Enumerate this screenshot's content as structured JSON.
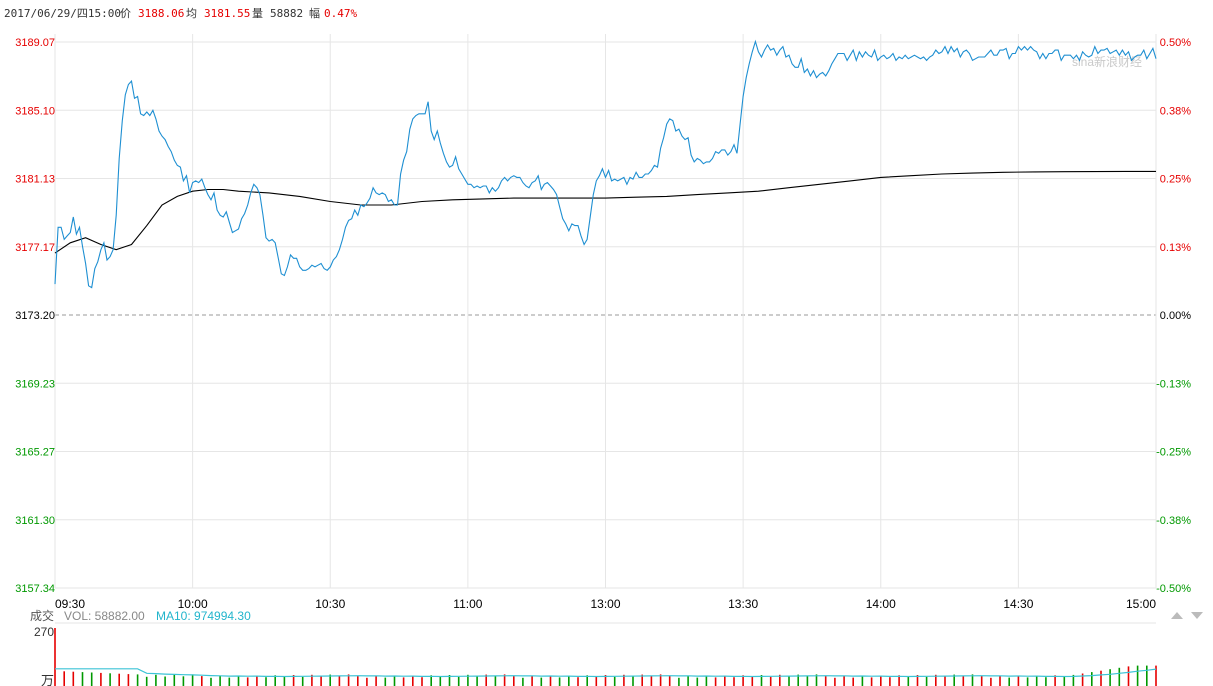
{
  "header": {
    "datetime": "2017/06/29/四15:00",
    "price_label": "价",
    "price": "3188.06",
    "avg_label": "均",
    "avg": "3181.55",
    "volume_label": "量",
    "volume": "58882",
    "change_label": "幅",
    "change": "0.47%"
  },
  "volume_panel": {
    "label": "成交",
    "vol_text": "VOL: 58882.00",
    "ma_text": "MA10: 974994.30",
    "max_label": "270",
    "unit_label": "万"
  },
  "watermark": "sina新浪财经",
  "colors": {
    "up": "#e60000",
    "down": "#009900",
    "price_line": "#1e8fd2",
    "avg_line": "#000000",
    "ma_line": "#3cc4d6",
    "grid": "#e6e6e6",
    "base": "#999999"
  },
  "chart_data": {
    "type": "line",
    "base_price": 3173.2,
    "ylim": [
      3157.34,
      3189.07
    ],
    "y_ticks": [
      "3189.07",
      "3185.10",
      "3181.13",
      "3177.17",
      "3173.20",
      "3169.23",
      "3165.27",
      "3161.30",
      "3157.34"
    ],
    "pct_ticks": [
      "0.50%",
      "0.38%",
      "0.25%",
      "0.13%",
      "0.00%",
      "-0.13%",
      "-0.25%",
      "-0.38%",
      "-0.50%"
    ],
    "x_ticks": [
      "09:30",
      "10:00",
      "10:30",
      "11:00",
      "13:00",
      "13:30",
      "14:00",
      "14:30",
      "15:00"
    ],
    "price": [
      [
        0,
        3175.0
      ],
      [
        1,
        3178.3
      ],
      [
        2,
        3178.3
      ],
      [
        3,
        3177.6
      ],
      [
        4,
        3177.8
      ],
      [
        5,
        3178.0
      ],
      [
        6,
        3178.9
      ],
      [
        7,
        3177.9
      ],
      [
        8,
        3178.3
      ],
      [
        9,
        3177.2
      ],
      [
        10,
        3176.2
      ],
      [
        11,
        3174.9
      ],
      [
        12,
        3174.8
      ],
      [
        13,
        3175.9
      ],
      [
        14,
        3176.3
      ],
      [
        15,
        3177.0
      ],
      [
        16,
        3177.4
      ],
      [
        17,
        3176.4
      ],
      [
        18,
        3176.6
      ],
      [
        19,
        3177.0
      ],
      [
        20,
        3179.0
      ],
      [
        21,
        3182.3
      ],
      [
        22,
        3184.5
      ],
      [
        23,
        3186.0
      ],
      [
        24,
        3186.6
      ],
      [
        25,
        3186.8
      ],
      [
        26,
        3185.8
      ],
      [
        27,
        3185.9
      ],
      [
        28,
        3184.9
      ],
      [
        29,
        3184.8
      ],
      [
        30,
        3185.0
      ],
      [
        31,
        3184.8
      ],
      [
        32,
        3185.1
      ],
      [
        33,
        3184.6
      ],
      [
        34,
        3183.9
      ],
      [
        35,
        3183.6
      ],
      [
        36,
        3183.4
      ],
      [
        37,
        3183.0
      ],
      [
        38,
        3182.7
      ],
      [
        39,
        3182.2
      ],
      [
        40,
        3181.9
      ],
      [
        41,
        3181.8
      ],
      [
        42,
        3181.0
      ],
      [
        43,
        3181.3
      ],
      [
        44,
        3180.3
      ],
      [
        45,
        3180.9
      ],
      [
        46,
        3181.0
      ],
      [
        47,
        3180.9
      ],
      [
        48,
        3181.1
      ],
      [
        49,
        3180.6
      ],
      [
        50,
        3180.2
      ],
      [
        51,
        3179.9
      ],
      [
        52,
        3180.3
      ],
      [
        53,
        3179.3
      ],
      [
        54,
        3179.0
      ],
      [
        55,
        3178.9
      ],
      [
        56,
        3179.2
      ],
      [
        57,
        3178.6
      ],
      [
        58,
        3178.0
      ],
      [
        59,
        3178.1
      ],
      [
        60,
        3178.2
      ],
      [
        61,
        3178.8
      ],
      [
        62,
        3179.1
      ],
      [
        63,
        3179.6
      ],
      [
        64,
        3180.3
      ],
      [
        65,
        3180.8
      ],
      [
        66,
        3180.6
      ],
      [
        67,
        3180.2
      ],
      [
        68,
        3179.0
      ],
      [
        69,
        3177.7
      ],
      [
        70,
        3177.5
      ],
      [
        71,
        3177.6
      ],
      [
        72,
        3177.4
      ],
      [
        73,
        3176.5
      ],
      [
        74,
        3175.6
      ],
      [
        75,
        3175.5
      ],
      [
        76,
        3176.0
      ],
      [
        77,
        3176.7
      ],
      [
        78,
        3176.5
      ],
      [
        79,
        3176.5
      ],
      [
        80,
        3176.0
      ],
      [
        81,
        3175.8
      ],
      [
        82,
        3175.8
      ],
      [
        83,
        3175.9
      ],
      [
        84,
        3176.1
      ],
      [
        85,
        3176.0
      ],
      [
        86,
        3176.1
      ],
      [
        87,
        3176.2
      ],
      [
        88,
        3175.9
      ],
      [
        89,
        3175.8
      ],
      [
        90,
        3176.0
      ],
      [
        91,
        3176.4
      ],
      [
        92,
        3176.6
      ],
      [
        93,
        3177.0
      ],
      [
        94,
        3177.6
      ],
      [
        95,
        3178.3
      ],
      [
        96,
        3178.7
      ],
      [
        97,
        3178.8
      ],
      [
        98,
        3179.3
      ],
      [
        99,
        3179.0
      ],
      [
        100,
        3179.6
      ],
      [
        101,
        3179.5
      ],
      [
        102,
        3179.7
      ],
      [
        103,
        3180.0
      ],
      [
        104,
        3180.6
      ],
      [
        105,
        3180.3
      ],
      [
        106,
        3180.2
      ],
      [
        107,
        3180.3
      ],
      [
        108,
        3180.2
      ],
      [
        109,
        3179.8
      ],
      [
        110,
        3179.9
      ],
      [
        111,
        3179.6
      ],
      [
        112,
        3179.6
      ],
      [
        113,
        3181.4
      ],
      [
        114,
        3182.2
      ],
      [
        115,
        3182.7
      ],
      [
        116,
        3184.0
      ],
      [
        117,
        3184.6
      ],
      [
        118,
        3184.8
      ],
      [
        119,
        3184.9
      ],
      [
        120,
        3184.9
      ],
      [
        121,
        3184.9
      ],
      [
        122,
        3185.6
      ],
      [
        123,
        3183.9
      ],
      [
        124,
        3183.4
      ],
      [
        125,
        3183.9
      ],
      [
        126,
        3183.2
      ],
      [
        127,
        3182.6
      ],
      [
        128,
        3182.1
      ],
      [
        129,
        3181.8
      ],
      [
        130,
        3181.9
      ],
      [
        131,
        3182.4
      ],
      [
        132,
        3181.7
      ],
      [
        133,
        3181.4
      ],
      [
        134,
        3181.1
      ],
      [
        135,
        3180.8
      ],
      [
        136,
        3180.8
      ],
      [
        137,
        3180.6
      ],
      [
        138,
        3180.7
      ],
      [
        139,
        3180.6
      ],
      [
        140,
        3180.7
      ],
      [
        141,
        3180.7
      ],
      [
        142,
        3180.3
      ],
      [
        143,
        3180.6
      ],
      [
        144,
        3180.4
      ],
      [
        145,
        3180.6
      ],
      [
        146,
        3181.0
      ],
      [
        147,
        3181.2
      ],
      [
        148,
        3181.0
      ],
      [
        149,
        3181.2
      ],
      [
        150,
        3181.3
      ],
      [
        151,
        3181.2
      ],
      [
        152,
        3181.2
      ],
      [
        153,
        3180.9
      ],
      [
        154,
        3180.7
      ],
      [
        155,
        3180.6
      ],
      [
        156,
        3180.9
      ],
      [
        157,
        3181.0
      ],
      [
        158,
        3181.3
      ],
      [
        159,
        3180.5
      ],
      [
        160,
        3180.8
      ],
      [
        161,
        3180.9
      ],
      [
        162,
        3180.7
      ],
      [
        163,
        3180.5
      ],
      [
        164,
        3180.2
      ],
      [
        165,
        3179.5
      ],
      [
        166,
        3178.8
      ],
      [
        167,
        3178.5
      ],
      [
        168,
        3178.1
      ],
      [
        169,
        3178.5
      ],
      [
        170,
        3178.4
      ],
      [
        171,
        3178.4
      ],
      [
        172,
        3177.8
      ],
      [
        173,
        3177.3
      ],
      [
        174,
        3177.6
      ],
      [
        175,
        3178.9
      ],
      [
        176,
        3180.2
      ],
      [
        177,
        3181.0
      ],
      [
        178,
        3181.3
      ],
      [
        179,
        3181.7
      ],
      [
        180,
        3181.2
      ],
      [
        181,
        3181.6
      ],
      [
        182,
        3181.0
      ],
      [
        183,
        3181.1
      ],
      [
        184,
        3181.0
      ],
      [
        185,
        3181.1
      ],
      [
        186,
        3181.2
      ],
      [
        187,
        3180.8
      ],
      [
        188,
        3181.2
      ],
      [
        189,
        3181.1
      ],
      [
        190,
        3181.5
      ],
      [
        191,
        3181.2
      ],
      [
        192,
        3181.2
      ],
      [
        193,
        3181.4
      ],
      [
        194,
        3181.4
      ],
      [
        195,
        3181.6
      ],
      [
        196,
        3181.9
      ],
      [
        197,
        3181.8
      ],
      [
        198,
        3182.9
      ],
      [
        199,
        3183.5
      ],
      [
        200,
        3184.3
      ],
      [
        201,
        3184.6
      ],
      [
        202,
        3184.5
      ],
      [
        203,
        3183.9
      ],
      [
        204,
        3184.0
      ],
      [
        205,
        3183.6
      ],
      [
        206,
        3183.4
      ],
      [
        207,
        3183.5
      ],
      [
        208,
        3182.5
      ],
      [
        209,
        3182.1
      ],
      [
        210,
        3182.3
      ],
      [
        211,
        3182.2
      ],
      [
        212,
        3182.0
      ],
      [
        213,
        3182.1
      ],
      [
        214,
        3182.1
      ],
      [
        215,
        3182.3
      ],
      [
        216,
        3182.7
      ],
      [
        217,
        3182.6
      ],
      [
        218,
        3182.8
      ],
      [
        219,
        3182.8
      ],
      [
        220,
        3182.5
      ],
      [
        221,
        3182.7
      ],
      [
        222,
        3183.1
      ],
      [
        223,
        3182.6
      ],
      [
        224,
        3184.3
      ],
      [
        225,
        3185.9
      ],
      [
        226,
        3187.0
      ],
      [
        227,
        3187.8
      ],
      [
        228,
        3188.5
      ],
      [
        229,
        3189.1
      ],
      [
        230,
        3188.5
      ],
      [
        231,
        3188.2
      ],
      [
        232,
        3188.6
      ],
      [
        233,
        3188.9
      ],
      [
        234,
        3188.6
      ],
      [
        235,
        3188.7
      ],
      [
        236,
        3188.3
      ],
      [
        237,
        3188.6
      ],
      [
        238,
        3188.8
      ],
      [
        239,
        3188.2
      ],
      [
        240,
        3188.3
      ],
      [
        241,
        3187.8
      ],
      [
        242,
        3187.6
      ],
      [
        243,
        3187.6
      ],
      [
        244,
        3188.1
      ],
      [
        245,
        3187.3
      ],
      [
        246,
        3187.5
      ],
      [
        247,
        3187.1
      ],
      [
        248,
        3187.4
      ],
      [
        249,
        3187.0
      ],
      [
        250,
        3187.2
      ],
      [
        251,
        3187.3
      ],
      [
        252,
        3187.1
      ],
      [
        253,
        3187.4
      ],
      [
        254,
        3187.8
      ],
      [
        255,
        3188.1
      ],
      [
        256,
        3188.4
      ],
      [
        257,
        3188.4
      ],
      [
        258,
        3188.4
      ],
      [
        259,
        3188.0
      ],
      [
        260,
        3188.3
      ],
      [
        261,
        3188.6
      ],
      [
        262,
        3188.0
      ],
      [
        263,
        3188.5
      ],
      [
        264,
        3188.2
      ],
      [
        265,
        3188.5
      ],
      [
        266,
        3188.3
      ],
      [
        267,
        3188.2
      ],
      [
        268,
        3188.6
      ],
      [
        269,
        3188.0
      ],
      [
        270,
        3188.2
      ],
      [
        271,
        3188.3
      ],
      [
        272,
        3188.1
      ],
      [
        273,
        3188.2
      ],
      [
        274,
        3188.4
      ],
      [
        275,
        3188.0
      ],
      [
        276,
        3188.2
      ],
      [
        277,
        3188.1
      ],
      [
        278,
        3188.3
      ],
      [
        279,
        3188.1
      ],
      [
        280,
        3188.2
      ],
      [
        281,
        3188.3
      ],
      [
        282,
        3188.2
      ],
      [
        283,
        3188.1
      ],
      [
        284,
        3188.2
      ],
      [
        285,
        3188.0
      ],
      [
        286,
        3188.2
      ],
      [
        287,
        3188.3
      ],
      [
        288,
        3188.6
      ],
      [
        289,
        3188.4
      ],
      [
        290,
        3188.5
      ],
      [
        291,
        3188.8
      ],
      [
        292,
        3188.4
      ],
      [
        293,
        3188.8
      ],
      [
        294,
        3188.5
      ],
      [
        295,
        3188.7
      ],
      [
        296,
        3188.2
      ],
      [
        297,
        3188.5
      ],
      [
        298,
        3188.6
      ],
      [
        299,
        3188.4
      ],
      [
        300,
        3188.0
      ],
      [
        301,
        3188.1
      ],
      [
        302,
        3188.2
      ],
      [
        303,
        3188.2
      ],
      [
        304,
        3188.2
      ],
      [
        305,
        3188.4
      ],
      [
        306,
        3188.6
      ],
      [
        307,
        3188.3
      ],
      [
        308,
        3188.3
      ],
      [
        309,
        3188.6
      ],
      [
        310,
        3188.6
      ],
      [
        311,
        3188.7
      ],
      [
        312,
        3188.1
      ],
      [
        313,
        3188.4
      ],
      [
        314,
        3188.4
      ],
      [
        315,
        3188.8
      ],
      [
        316,
        3188.6
      ],
      [
        317,
        3188.8
      ],
      [
        318,
        3188.6
      ],
      [
        319,
        3188.8
      ],
      [
        320,
        3188.6
      ],
      [
        321,
        3188.5
      ],
      [
        322,
        3188.1
      ],
      [
        323,
        3188.4
      ],
      [
        324,
        3188.1
      ],
      [
        325,
        3188.4
      ],
      [
        326,
        3188.4
      ],
      [
        327,
        3188.6
      ],
      [
        328,
        3188.6
      ],
      [
        329,
        3188.0
      ],
      [
        330,
        3188.3
      ],
      [
        331,
        3188.3
      ],
      [
        332,
        3188.3
      ],
      [
        333,
        3188.1
      ],
      [
        334,
        3188.3
      ],
      [
        335,
        3188.0
      ],
      [
        336,
        3188.5
      ],
      [
        337,
        3188.3
      ],
      [
        338,
        3188.2
      ],
      [
        339,
        3188.3
      ],
      [
        340,
        3188.8
      ],
      [
        341,
        3188.4
      ],
      [
        342,
        3188.6
      ],
      [
        343,
        3188.6
      ],
      [
        344,
        3188.7
      ],
      [
        345,
        3188.4
      ],
      [
        346,
        3188.5
      ],
      [
        347,
        3188.6
      ],
      [
        348,
        3188.3
      ],
      [
        349,
        3188.6
      ],
      [
        350,
        3188.3
      ],
      [
        351,
        3188.5
      ],
      [
        352,
        3188.0
      ],
      [
        353,
        3188.2
      ],
      [
        354,
        3188.3
      ],
      [
        355,
        3188.3
      ],
      [
        356,
        3188.6
      ],
      [
        357,
        3188.1
      ],
      [
        358,
        3188.4
      ],
      [
        359,
        3188.7
      ],
      [
        360,
        3188.1
      ]
    ],
    "avg": [
      [
        0,
        3176.8
      ],
      [
        5,
        3177.4
      ],
      [
        10,
        3177.7
      ],
      [
        15,
        3177.3
      ],
      [
        20,
        3177.0
      ],
      [
        25,
        3177.3
      ],
      [
        30,
        3178.4
      ],
      [
        35,
        3179.6
      ],
      [
        40,
        3180.1
      ],
      [
        45,
        3180.4
      ],
      [
        50,
        3180.5
      ],
      [
        55,
        3180.5
      ],
      [
        60,
        3180.4
      ],
      [
        70,
        3180.3
      ],
      [
        80,
        3180.1
      ],
      [
        90,
        3179.8
      ],
      [
        100,
        3179.6
      ],
      [
        110,
        3179.6
      ],
      [
        120,
        3179.8
      ],
      [
        130,
        3179.9
      ],
      [
        140,
        3179.95
      ],
      [
        150,
        3180.0
      ],
      [
        160,
        3180.0
      ],
      [
        170,
        3180.0
      ],
      [
        180,
        3180.0
      ],
      [
        190,
        3180.05
      ],
      [
        200,
        3180.1
      ],
      [
        210,
        3180.2
      ],
      [
        220,
        3180.3
      ],
      [
        230,
        3180.4
      ],
      [
        240,
        3180.6
      ],
      [
        250,
        3180.8
      ],
      [
        260,
        3181.0
      ],
      [
        270,
        3181.2
      ],
      [
        280,
        3181.3
      ],
      [
        290,
        3181.4
      ],
      [
        300,
        3181.45
      ],
      [
        310,
        3181.5
      ],
      [
        320,
        3181.52
      ],
      [
        330,
        3181.53
      ],
      [
        340,
        3181.54
      ],
      [
        350,
        3181.55
      ],
      [
        360,
        3181.55
      ]
    ],
    "volume_max": 270
  }
}
